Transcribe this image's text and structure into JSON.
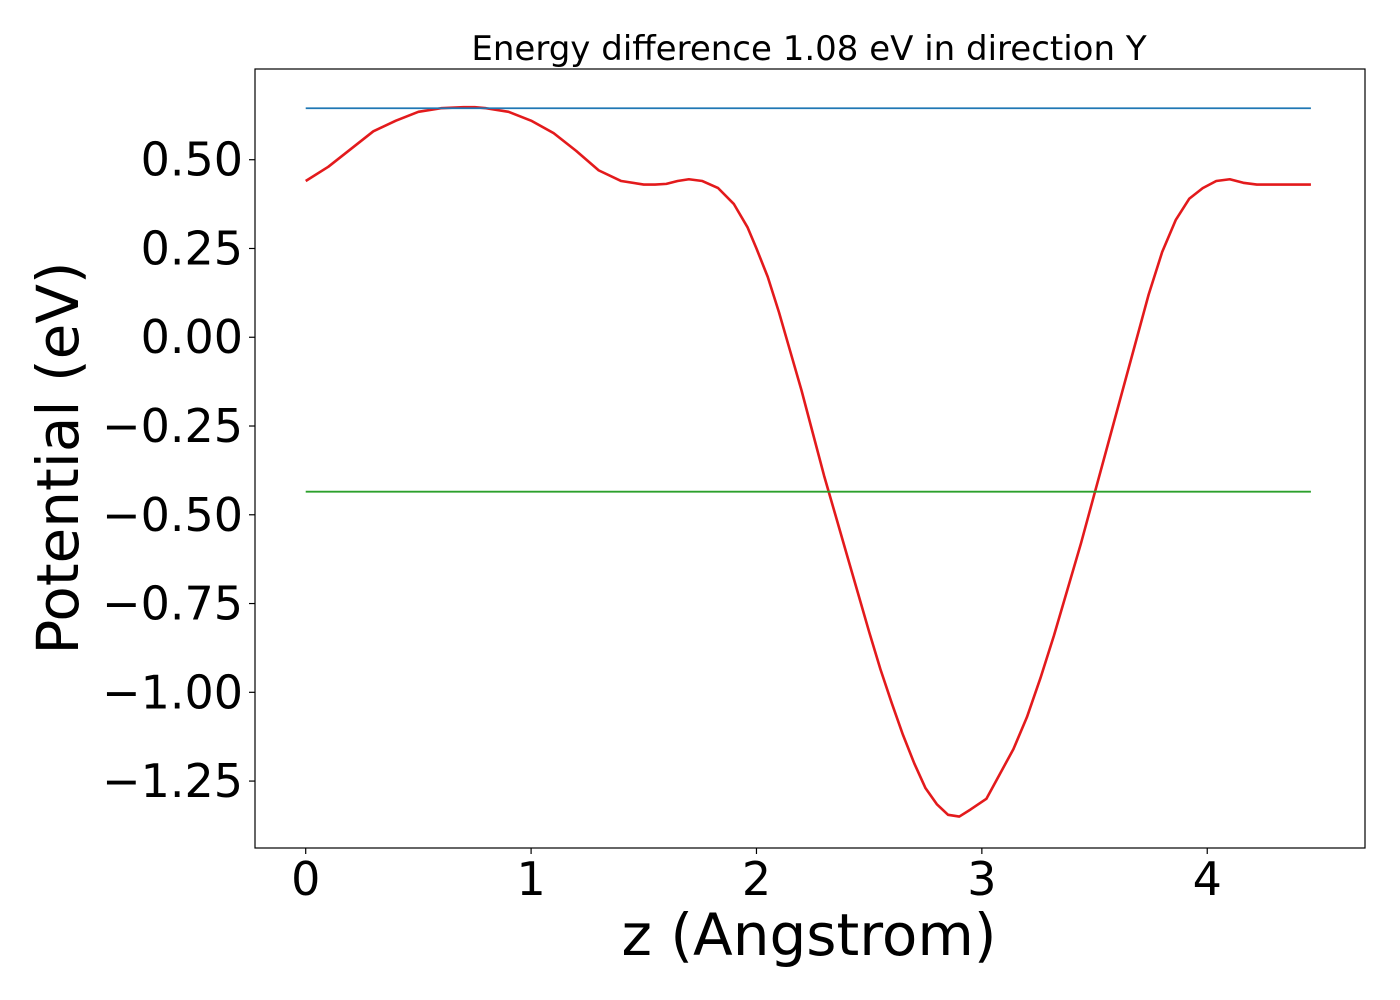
{
  "chart_data": {
    "type": "line",
    "title": "Energy difference 1.08 eV in direction Y",
    "xlabel": "z (Angstrom)",
    "ylabel": "Potential (eV)",
    "xlim": [
      -0.225,
      4.7
    ],
    "ylim": [
      -1.4385,
      0.7555
    ],
    "xticks": [
      0,
      1,
      2,
      3,
      4
    ],
    "xtick_labels": [
      "0",
      "1",
      "2",
      "3",
      "4"
    ],
    "yticks": [
      0.5,
      0.25,
      0.0,
      -0.25,
      -0.5,
      -0.75,
      -1.0,
      -1.25
    ],
    "ytick_labels": [
      "0.50",
      "0.25",
      "0.00",
      "−0.25",
      "−0.50",
      "−0.75",
      "−1.00",
      "−1.25"
    ],
    "grid": false,
    "series": [
      {
        "name": "potential",
        "color": "#e31a1c",
        "x": [
          0,
          0.1,
          0.2,
          0.3,
          0.4,
          0.5,
          0.6,
          0.7,
          0.75,
          0.8,
          0.9,
          1.0,
          1.1,
          1.2,
          1.3,
          1.4,
          1.5,
          1.55,
          1.6,
          1.65,
          1.7,
          1.76,
          1.83,
          1.9,
          1.96,
          2.0,
          2.05,
          2.1,
          2.15,
          2.2,
          2.25,
          2.3,
          2.35,
          2.4,
          2.45,
          2.5,
          2.55,
          2.6,
          2.65,
          2.7,
          2.75,
          2.8,
          2.85,
          2.9,
          2.95,
          3.02,
          3.08,
          3.14,
          3.2,
          3.26,
          3.32,
          3.38,
          3.44,
          3.5,
          3.56,
          3.62,
          3.68,
          3.74,
          3.8,
          3.86,
          3.92,
          3.98,
          4.04,
          4.1,
          4.16,
          4.22,
          4.28,
          4.35,
          4.42,
          4.46
        ],
        "y": [
          0.44,
          0.48,
          0.53,
          0.58,
          0.61,
          0.635,
          0.645,
          0.648,
          0.648,
          0.645,
          0.635,
          0.61,
          0.575,
          0.525,
          0.47,
          0.44,
          0.43,
          0.43,
          0.432,
          0.44,
          0.445,
          0.44,
          0.42,
          0.375,
          0.31,
          0.25,
          0.17,
          0.07,
          -0.04,
          -0.15,
          -0.27,
          -0.39,
          -0.5,
          -0.61,
          -0.72,
          -0.83,
          -0.935,
          -1.03,
          -1.12,
          -1.2,
          -1.27,
          -1.315,
          -1.345,
          -1.35,
          -1.33,
          -1.3,
          -1.23,
          -1.16,
          -1.07,
          -0.96,
          -0.84,
          -0.71,
          -0.58,
          -0.44,
          -0.3,
          -0.16,
          -0.02,
          0.12,
          0.24,
          0.33,
          0.39,
          0.42,
          0.44,
          0.445,
          0.435,
          0.43,
          0.43,
          0.43,
          0.43,
          0.43
        ]
      },
      {
        "name": "maximum",
        "color": "#1f77b4",
        "x": [
          0,
          4.46
        ],
        "y": [
          0.645,
          0.645
        ]
      },
      {
        "name": "minimum",
        "color": "#2ca02c",
        "x": [
          0,
          4.46
        ],
        "y": [
          -0.435,
          -0.435
        ]
      }
    ]
  }
}
